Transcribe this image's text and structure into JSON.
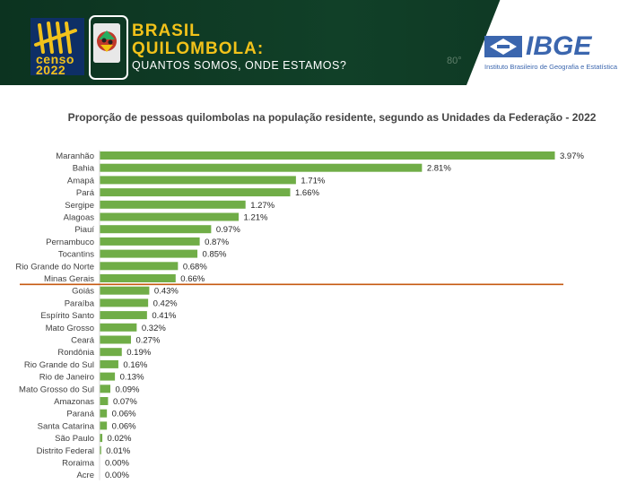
{
  "header": {
    "censo_label": "censo",
    "censo_year": "2022",
    "title_line1": "BRASIL",
    "title_line2": "QUILOMBOLA:",
    "subtitle": "QUANTOS SOMOS, ONDE ESTAMOS?",
    "banner_number": "80°",
    "ibge_name": "IBGE",
    "ibge_full": "Instituto Brasileiro de Geografia e Estatística"
  },
  "colors": {
    "bar": "#70ad47",
    "divider": "#c55a11",
    "banner": "#0f3a22",
    "gold": "#f2c21a",
    "ibge_blue": "#3b66ae"
  },
  "chart_data": {
    "type": "bar",
    "orientation": "horizontal",
    "title": "Proporção de pessoas quilombolas na população residente, segundo as Unidades da Federação - 2022",
    "categories": [
      "Maranhão",
      "Bahia",
      "Amapá",
      "Pará",
      "Sergipe",
      "Alagoas",
      "Piauí",
      "Pernambuco",
      "Tocantins",
      "Rio Grande do Norte",
      "Minas Gerais",
      "Goiás",
      "Paraíba",
      "Espírito Santo",
      "Mato Grosso",
      "Ceará",
      "Rondônia",
      "Rio Grande do Sul",
      "Rio de Janeiro",
      "Mato Grosso do Sul",
      "Amazonas",
      "Paraná",
      "Santa Catarina",
      "São Paulo",
      "Distrito Federal",
      "Roraima",
      "Acre"
    ],
    "values": [
      3.97,
      2.81,
      1.71,
      1.66,
      1.27,
      1.21,
      0.97,
      0.87,
      0.85,
      0.68,
      0.66,
      0.43,
      0.42,
      0.41,
      0.32,
      0.27,
      0.19,
      0.16,
      0.13,
      0.09,
      0.07,
      0.06,
      0.06,
      0.02,
      0.01,
      0.0,
      0.0
    ],
    "labels": [
      "3.97%",
      "2.81%",
      "1.71%",
      "1.66%",
      "1.27%",
      "1.21%",
      "0.97%",
      "0.87%",
      "0.85%",
      "0.68%",
      "0.66%",
      "0.43%",
      "0.42%",
      "0.41%",
      "0.32%",
      "0.27%",
      "0.19%",
      "0.16%",
      "0.13%",
      "0.09%",
      "0.07%",
      "0.06%",
      "0.06%",
      "0.02%",
      "0.01%",
      "0.00%",
      "0.00%"
    ],
    "divider_after_index": 10,
    "xlim": [
      0,
      4
    ],
    "grid": false,
    "legend": "none"
  }
}
